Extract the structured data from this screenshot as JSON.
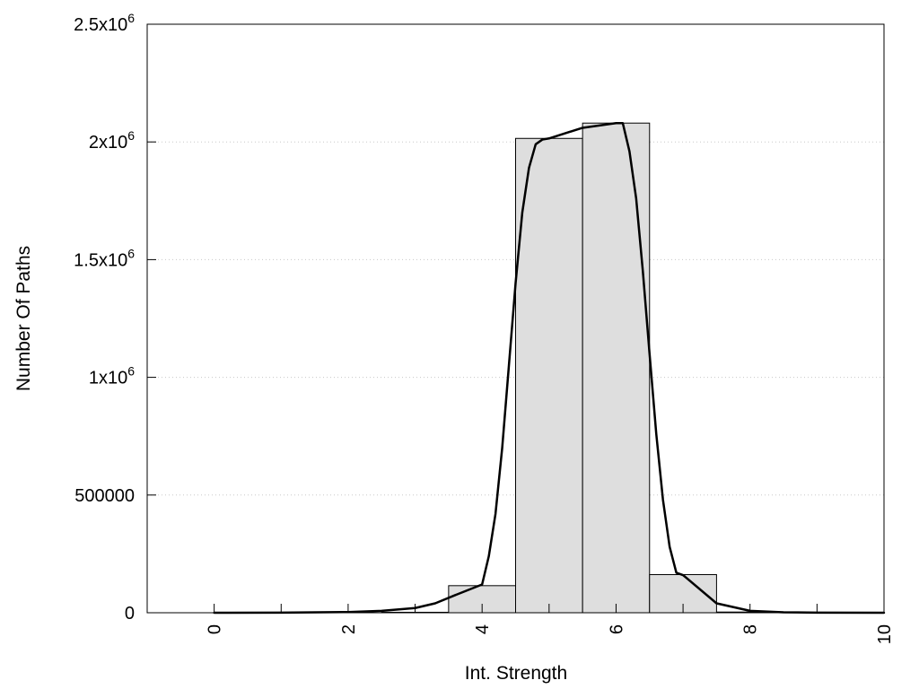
{
  "chart_data": {
    "type": "bar",
    "title": "",
    "xlabel": "Int. Strength",
    "ylabel": "Number Of Paths",
    "xlim": [
      -1,
      10
    ],
    "ylim": [
      0,
      2500000
    ],
    "grid": "horizontal dotted",
    "x_ticks": [
      {
        "value": 0,
        "label": "0"
      },
      {
        "value": 2,
        "label": "2"
      },
      {
        "value": 4,
        "label": "4"
      },
      {
        "value": 6,
        "label": "6"
      },
      {
        "value": 8,
        "label": "8"
      },
      {
        "value": 10,
        "label": "10"
      }
    ],
    "y_ticks": [
      {
        "value": 0,
        "base": "0",
        "exp": ""
      },
      {
        "value": 500000,
        "base": "500000",
        "exp": ""
      },
      {
        "value": 1000000,
        "base": "1x10",
        "exp": "6"
      },
      {
        "value": 1500000,
        "base": "1.5x10",
        "exp": "6"
      },
      {
        "value": 2000000,
        "base": "2x10",
        "exp": "6"
      },
      {
        "value": 2500000,
        "base": "2.5x10",
        "exp": "6"
      }
    ],
    "bars": {
      "categories": [
        0,
        1,
        2,
        3,
        4,
        5,
        6,
        7,
        8,
        9,
        10
      ],
      "width": 1,
      "values": [
        0,
        0,
        0,
        2000,
        115000,
        2015000,
        2080000,
        162000,
        3000,
        0,
        0
      ],
      "fill_color": "#dedede",
      "stroke_color": "#000000"
    },
    "curve": {
      "x": [
        0,
        1,
        2,
        2.5,
        3,
        3.3,
        3.6,
        4,
        4.1,
        4.2,
        4.3,
        4.4,
        4.5,
        4.6,
        4.7,
        4.8,
        4.9,
        5,
        5.5,
        6,
        6.1,
        6.2,
        6.3,
        6.4,
        6.5,
        6.6,
        6.7,
        6.8,
        6.9,
        7,
        7.5,
        8,
        8.5,
        9,
        10
      ],
      "y": [
        0,
        500,
        3000,
        8000,
        20000,
        40000,
        75000,
        120000,
        240000,
        420000,
        700000,
        1050000,
        1400000,
        1700000,
        1890000,
        1990000,
        2010000,
        2015000,
        2060000,
        2080000,
        2080000,
        1960000,
        1760000,
        1450000,
        1100000,
        760000,
        480000,
        280000,
        170000,
        160000,
        40000,
        8000,
        2000,
        500,
        0
      ],
      "color": "#000000"
    }
  }
}
